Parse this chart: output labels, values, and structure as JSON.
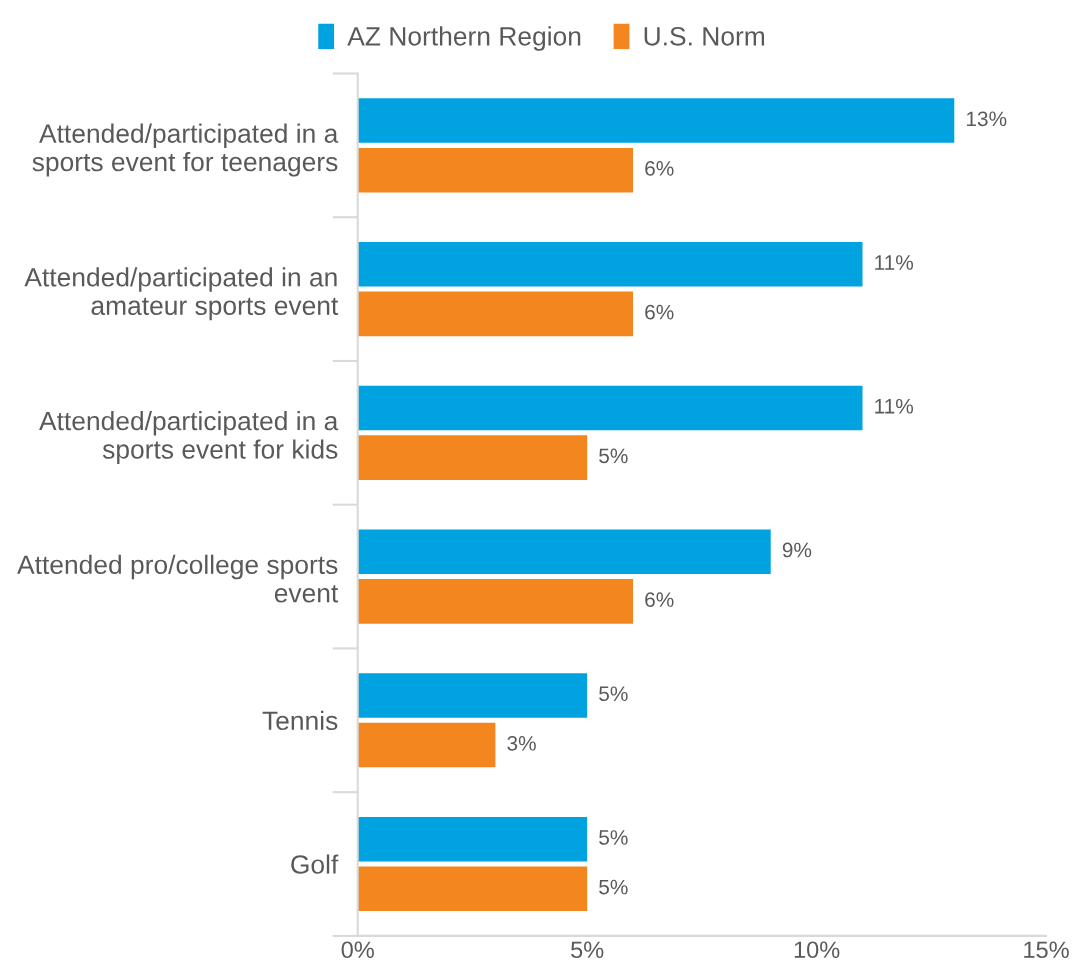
{
  "chart_data": {
    "type": "bar",
    "orientation": "horizontal",
    "categories": [
      "Attended/participated in a\nsports event for teenagers",
      "Attended/participated in an\namateur sports event",
      "Attended/participated in a\nsports event for kids",
      "Attended pro/college sports\nevent",
      "Tennis",
      "Golf"
    ],
    "series": [
      {
        "name": "AZ Northern Region",
        "color": "#00a2e0",
        "values": [
          13,
          11,
          11,
          9,
          5,
          5
        ],
        "value_labels": [
          "13%",
          "11%",
          "11%",
          "9%",
          "5%",
          "5%"
        ]
      },
      {
        "name": "U.S. Norm",
        "color": "#f3861f",
        "values": [
          6,
          6,
          5,
          6,
          3,
          5
        ],
        "value_labels": [
          "6%",
          "6%",
          "5%",
          "6%",
          "3%",
          "5%"
        ]
      }
    ],
    "xlim": [
      0,
      15
    ],
    "xticks": [
      {
        "value": 0,
        "label": "0%"
      },
      {
        "value": 5,
        "label": "5%"
      },
      {
        "value": 10,
        "label": "10%"
      },
      {
        "value": 15,
        "label": "15%"
      }
    ],
    "legend": "top",
    "grid": false
  }
}
